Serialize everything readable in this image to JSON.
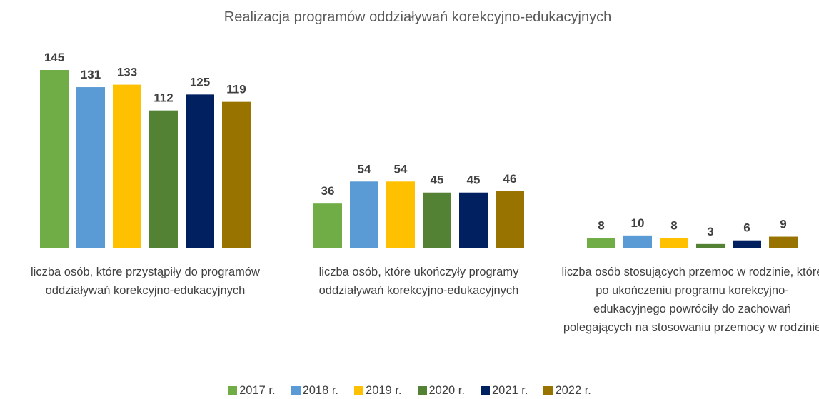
{
  "chart_data": {
    "type": "bar",
    "title": "Realizacja programów oddziaływań korekcyjno-edukacyjnych",
    "categories": [
      "liczba osób, które przystąpiły do programów oddziaływań korekcyjno-edukacyjnych",
      "liczba osób, które ukończyły programy oddziaływań korekcyjno-edukacyjnych",
      "liczba osób stosujących przemoc w rodzinie, które po ukończeniu programu korekcyjno-edukacyjnego powróciły do zachowań polegających na stosowaniu przemocy w rodzinie"
    ],
    "series": [
      {
        "name": "2017 r.",
        "color": "#70ad47",
        "values": [
          145,
          36,
          8
        ]
      },
      {
        "name": "2018 r.",
        "color": "#5b9bd5",
        "values": [
          131,
          54,
          10
        ]
      },
      {
        "name": "2019 r.",
        "color": "#ffc000",
        "values": [
          133,
          54,
          8
        ]
      },
      {
        "name": "2020 r.",
        "color": "#548235",
        "values": [
          112,
          45,
          3
        ]
      },
      {
        "name": "2021 r.",
        "color": "#002060",
        "values": [
          125,
          45,
          6
        ]
      },
      {
        "name": "2022 r.",
        "color": "#997300",
        "values": [
          119,
          46,
          9
        ]
      }
    ],
    "legend": "bottom"
  }
}
